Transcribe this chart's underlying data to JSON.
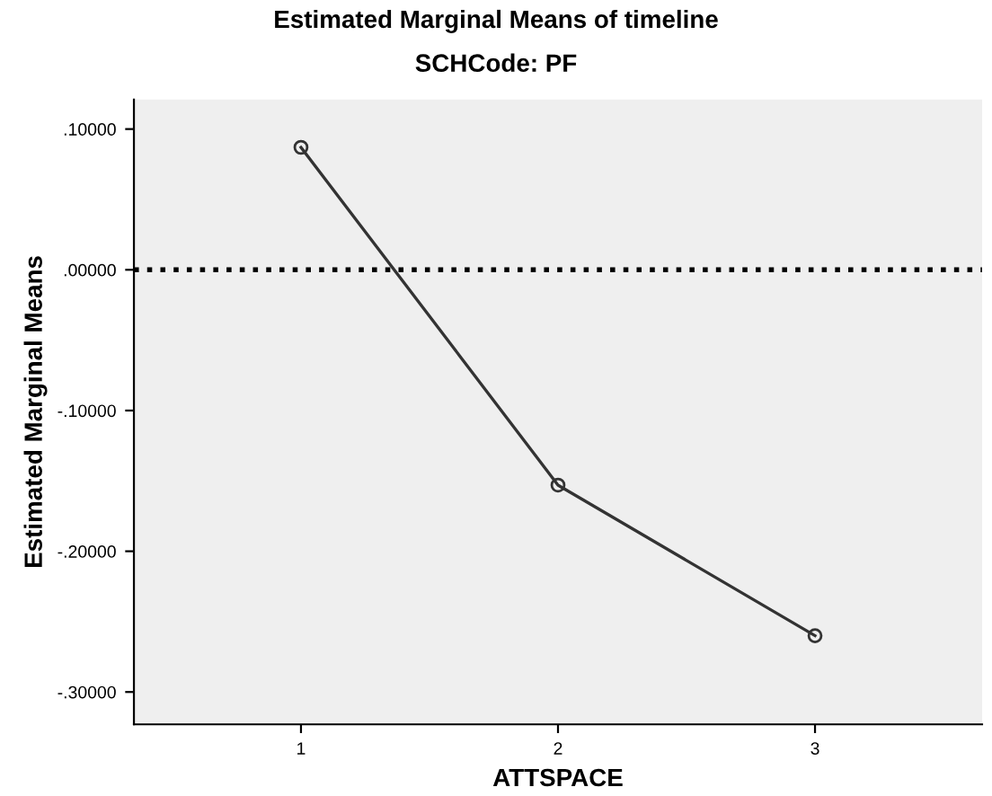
{
  "chart_data": {
    "type": "line",
    "title": "Estimated Marginal Means of timeline",
    "subtitle": "SCHCode: PF",
    "xlabel": "ATTSPACE",
    "ylabel": "Estimated Marginal Means",
    "categories": [
      "1",
      "2",
      "3"
    ],
    "series": [
      {
        "color": "#333333",
        "values": [
          0.087,
          -0.153,
          -0.26
        ]
      }
    ],
    "ylim": [
      -0.323,
      0.121
    ],
    "yticks": [
      {
        "value": 0.1,
        "label": ".10000"
      },
      {
        "value": 0,
        "label": ".00000"
      },
      {
        "value": -0.1,
        "label": "-.10000"
      },
      {
        "value": -0.2,
        "label": "-.20000"
      },
      {
        "value": -0.3,
        "label": "-.30000"
      }
    ],
    "ref_lines": [
      {
        "axis": "y",
        "value": 0,
        "color": "#000000",
        "line_style": "dotted"
      }
    ],
    "marker": "circle",
    "line_style": "solid",
    "grid": false,
    "legend": false
  }
}
